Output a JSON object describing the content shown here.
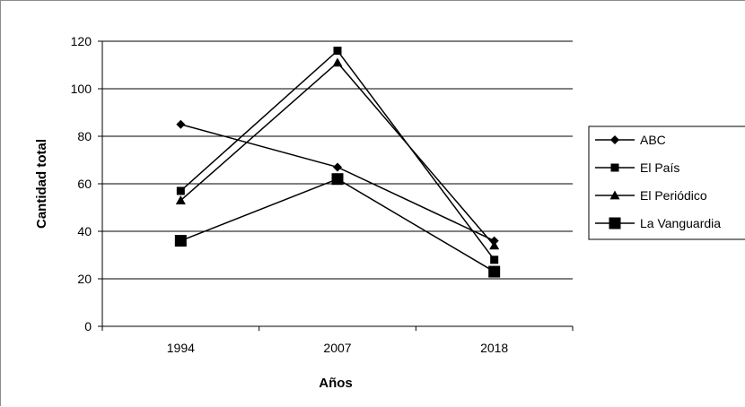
{
  "chart_data": {
    "type": "line",
    "title": "",
    "xlabel": "Años",
    "ylabel": "Cantidad total",
    "categories": [
      "1994",
      "2007",
      "2018"
    ],
    "ylim": [
      0,
      120
    ],
    "yticks": [
      0,
      20,
      40,
      60,
      80,
      100,
      120
    ],
    "grid": true,
    "legend_position": "right",
    "series": [
      {
        "name": "ABC",
        "marker": "diamond",
        "values": [
          85,
          67,
          36
        ]
      },
      {
        "name": "El País",
        "marker": "square-small",
        "values": [
          57,
          116,
          28
        ]
      },
      {
        "name": "El Periódico",
        "marker": "triangle",
        "values": [
          53,
          111,
          34
        ]
      },
      {
        "name": "La Vanguardia",
        "marker": "square-large",
        "values": [
          36,
          62,
          23
        ]
      }
    ],
    "line_color": "#000000"
  }
}
